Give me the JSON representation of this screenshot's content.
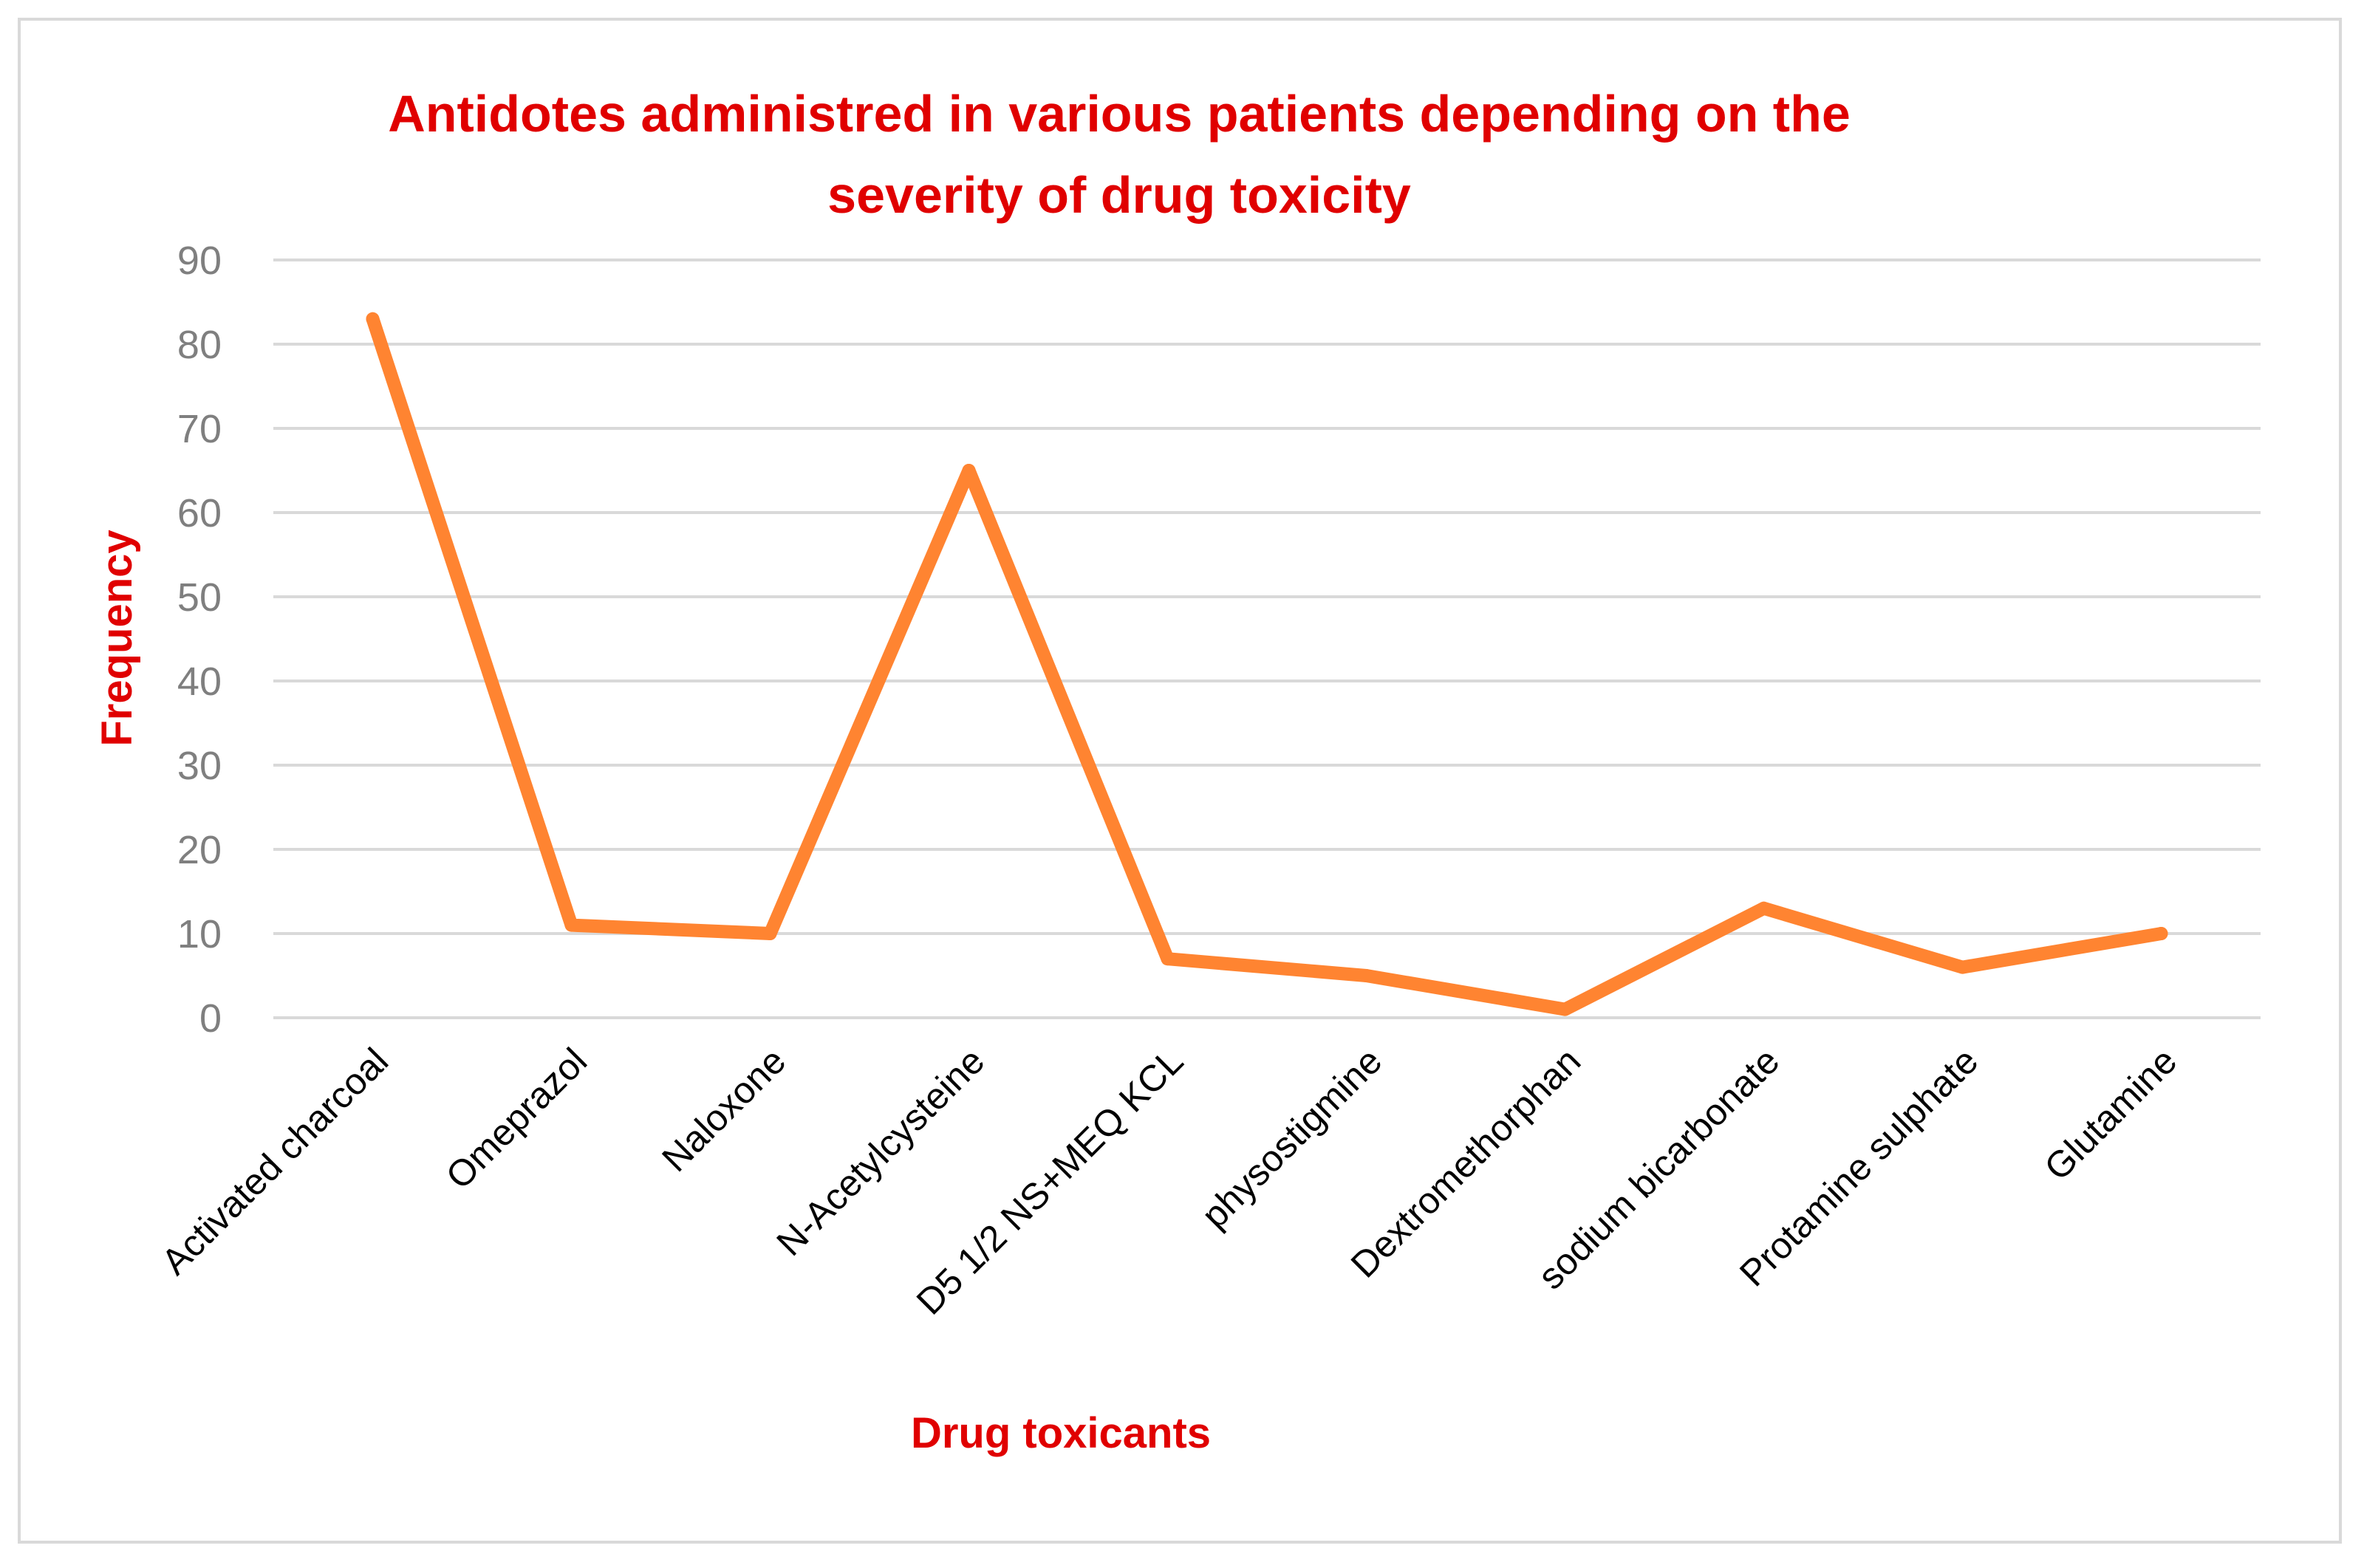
{
  "chart_data": {
    "type": "line",
    "title_lines": [
      "Antidotes administred in various  patients depending on the",
      "severity of drug toxicity"
    ],
    "xlabel": "Drug toxicants",
    "ylabel": "Frequency",
    "ylim": [
      0,
      90
    ],
    "yticks": [
      "0",
      "10",
      "20",
      "30",
      "40",
      "50",
      "60",
      "70",
      "80",
      "90"
    ],
    "grid": true,
    "legend": "none",
    "categories": [
      "Activated charcoal",
      "Omeprazol",
      "Naloxone",
      "N-Acetylcysteine",
      "D5 1/2 NS+MEQ KCL",
      "physostigmine",
      "Dextromethorphan",
      "sodium bicarbonate",
      "Protamine sulphate",
      "Glutamine"
    ],
    "series": [
      {
        "name": "Frequency",
        "values": [
          83,
          11,
          10,
          65,
          7,
          5,
          1,
          13,
          6,
          10
        ],
        "color": "#ff8431"
      }
    ]
  }
}
